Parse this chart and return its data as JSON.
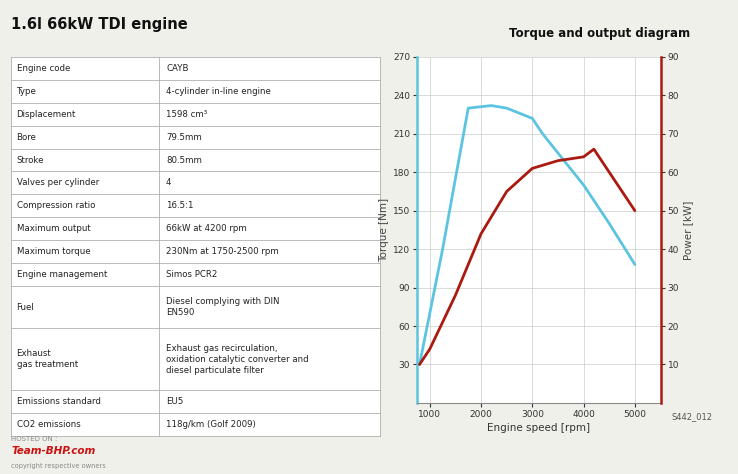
{
  "title": "1.6l 66kW TDI engine",
  "chart_title": "Torque and output diagram",
  "chart_ref": "S442_012",
  "bg_color": "#f0f0eb",
  "table_rows": [
    [
      "Engine code",
      "CAYB"
    ],
    [
      "Type",
      "4-cylinder in-line engine"
    ],
    [
      "Displacement",
      "1598 cm³"
    ],
    [
      "Bore",
      "79.5mm"
    ],
    [
      "Stroke",
      "80.5mm"
    ],
    [
      "Valves per cylinder",
      "4"
    ],
    [
      "Compression ratio",
      "16.5:1"
    ],
    [
      "Maximum output",
      "66kW at 4200 rpm"
    ],
    [
      "Maximum torque",
      "230Nm at 1750-2500 rpm"
    ],
    [
      "Engine management",
      "Simos PCR2"
    ],
    [
      "Fuel",
      "Diesel complying with DIN\nEN590"
    ],
    [
      "Exhaust\ngas treatment",
      "Exhaust gas recirculation,\noxidation catalytic converter and\ndiesel particulate filter"
    ],
    [
      "Emissions standard",
      "EU5"
    ],
    [
      "CO2 emissions",
      "118g/km (Golf 2009)"
    ]
  ],
  "torque_rpm": [
    800,
    1250,
    1750,
    2200,
    2500,
    3000,
    3200,
    3500,
    4000,
    4500,
    5000
  ],
  "torque_nm": [
    30,
    120,
    230,
    232,
    230,
    222,
    210,
    195,
    170,
    140,
    108
  ],
  "power_rpm": [
    800,
    1000,
    1500,
    2000,
    2500,
    3000,
    3500,
    4000,
    4200,
    4500,
    5000
  ],
  "power_kw": [
    10,
    14,
    28,
    44,
    55,
    61,
    63,
    64,
    66,
    60,
    50
  ],
  "torque_color": "#5bc4e0",
  "power_color": "#aa1a10",
  "left_axis_color": "#5bc4e0",
  "right_axis_color": "#aa1a10",
  "ylim_left": [
    0,
    270
  ],
  "ylim_right": [
    0,
    90
  ],
  "yticks_left": [
    30,
    60,
    90,
    120,
    150,
    180,
    210,
    240,
    270
  ],
  "yticks_right": [
    10,
    20,
    30,
    40,
    50,
    60,
    70,
    80,
    90
  ],
  "xlim": [
    750,
    5500
  ],
  "xticks": [
    1000,
    2000,
    3000,
    4000,
    5000
  ],
  "xlabel": "Engine speed [rpm]",
  "ylabel_left": "Torque [Nm]",
  "ylabel_right": "Power [kW]",
  "grid_color": "#cccccc",
  "watermark_line1": "HOSTED ON :",
  "watermark_line2": "Team-BHP.com",
  "watermark_line3": "copyright respective owners"
}
